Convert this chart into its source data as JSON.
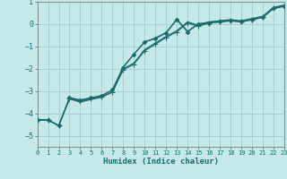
{
  "xlabel": "Humidex (Indice chaleur)",
  "xlim": [
    0,
    23
  ],
  "ylim": [
    -5.5,
    1.0
  ],
  "yticks": [
    1,
    0,
    -1,
    -2,
    -3,
    -4,
    -5
  ],
  "xticks": [
    0,
    1,
    2,
    3,
    4,
    5,
    6,
    7,
    8,
    9,
    10,
    11,
    12,
    13,
    14,
    15,
    16,
    17,
    18,
    19,
    20,
    21,
    22,
    23
  ],
  "bg_color": "#c5e8e8",
  "grid_color": "#a8d0d0",
  "line_color": "#1a6b6b",
  "lines": [
    {
      "x": [
        0,
        1,
        2,
        3,
        4,
        5,
        6,
        7,
        8,
        9,
        10,
        11,
        12,
        13,
        14,
        15,
        16,
        17,
        18,
        19,
        20,
        21,
        22,
        23
      ],
      "y": [
        -4.3,
        -4.3,
        -4.55,
        -3.35,
        -3.45,
        -3.35,
        -3.25,
        -3.05,
        -2.05,
        -1.8,
        -1.2,
        -0.9,
        -0.6,
        -0.35,
        0.05,
        -0.1,
        0.05,
        0.1,
        0.15,
        0.1,
        0.2,
        0.3,
        0.7,
        0.8
      ],
      "marker": "+",
      "ms": 4.0
    },
    {
      "x": [
        0,
        1,
        2,
        3,
        4,
        5,
        6,
        7,
        8,
        9,
        10,
        11,
        12,
        13,
        14,
        15,
        16,
        17,
        18,
        19,
        20,
        21,
        22,
        23
      ],
      "y": [
        -4.3,
        -4.3,
        -4.55,
        -3.35,
        -3.5,
        -3.38,
        -3.28,
        -3.05,
        -2.0,
        -1.75,
        -1.15,
        -0.85,
        -0.55,
        -0.3,
        0.1,
        -0.05,
        0.1,
        0.15,
        0.2,
        0.15,
        0.25,
        0.35,
        0.75,
        0.85
      ],
      "marker": null,
      "ms": 0
    },
    {
      "x": [
        0,
        1,
        2,
        3,
        4,
        5,
        6,
        7,
        8,
        9,
        10,
        11,
        12,
        13,
        14,
        15,
        16,
        17,
        18,
        19,
        20,
        21,
        22,
        23
      ],
      "y": [
        -4.3,
        -4.3,
        -4.55,
        -3.3,
        -3.4,
        -3.3,
        -3.2,
        -2.95,
        -1.95,
        -1.35,
        -0.8,
        -0.65,
        -0.4,
        0.2,
        -0.35,
        0.0,
        0.05,
        0.1,
        0.15,
        0.1,
        0.2,
        0.3,
        0.7,
        0.8
      ],
      "marker": "D",
      "ms": 2.2
    },
    {
      "x": [
        0,
        1,
        2,
        3,
        4,
        5,
        6,
        7,
        8,
        9,
        10,
        11,
        12,
        13,
        14,
        15,
        16,
        17,
        18,
        19,
        20,
        21,
        22,
        23
      ],
      "y": [
        -4.3,
        -4.3,
        -4.55,
        -3.3,
        -3.42,
        -3.32,
        -3.22,
        -2.95,
        -1.92,
        -1.35,
        -0.8,
        -0.62,
        -0.38,
        0.22,
        -0.32,
        0.02,
        0.08,
        0.12,
        0.18,
        0.12,
        0.22,
        0.32,
        0.72,
        0.82
      ],
      "marker": null,
      "ms": 0
    }
  ]
}
